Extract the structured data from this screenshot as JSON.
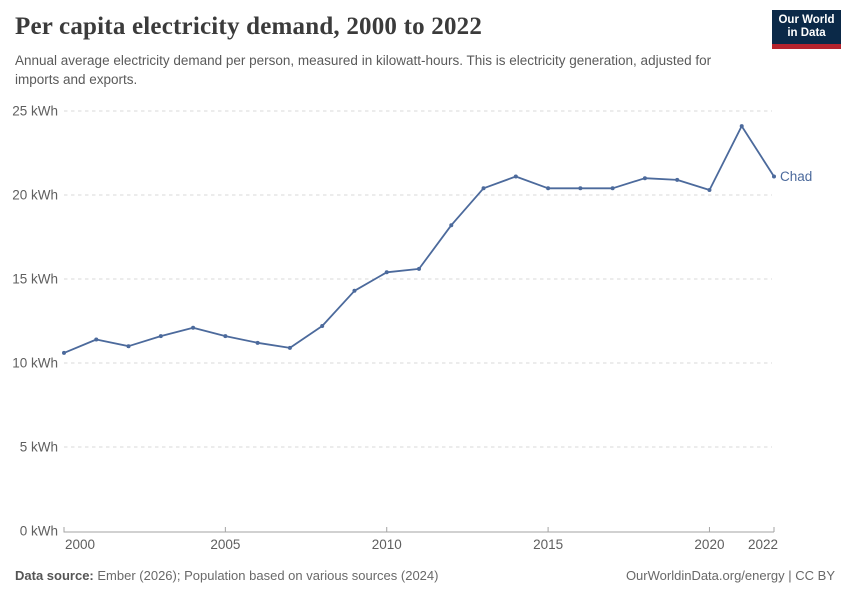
{
  "header": {
    "title": "Per capita electricity demand, 2000 to 2022",
    "subtitle": "Annual average electricity demand per person, measured in kilowatt-hours. This is electricity generation, adjusted for imports and exports.",
    "logo": {
      "line1": "Our World",
      "line2": "in Data",
      "bg_color": "#0b2948",
      "accent_color": "#b5232d",
      "text_color": "#ffffff"
    }
  },
  "chart_data": {
    "type": "line",
    "title": "Per capita electricity demand, 2000 to 2022",
    "x": [
      2000,
      2001,
      2002,
      2003,
      2004,
      2005,
      2006,
      2007,
      2008,
      2009,
      2010,
      2011,
      2012,
      2013,
      2014,
      2015,
      2016,
      2017,
      2018,
      2019,
      2020,
      2021,
      2022
    ],
    "series": [
      {
        "name": "Chad",
        "color": "#4C6A9C",
        "values": [
          10.6,
          11.4,
          11.0,
          11.6,
          12.1,
          11.6,
          11.2,
          10.9,
          12.2,
          14.3,
          15.4,
          15.6,
          18.2,
          20.4,
          21.1,
          20.4,
          20.4,
          20.4,
          21.0,
          20.9,
          20.3,
          24.1,
          21.1
        ]
      }
    ],
    "xlabel": "",
    "ylabel": "",
    "y_tick_suffix": " kWh",
    "x_ticks": [
      2000,
      2005,
      2010,
      2015,
      2020,
      2022
    ],
    "y_ticks": [
      0,
      5,
      10,
      15,
      20,
      25
    ],
    "xlim": [
      2000,
      2022
    ],
    "ylim": [
      0,
      25
    ],
    "grid": "horizontal-dashed",
    "legend_position": "line-end-label"
  },
  "footer": {
    "data_source_label": "Data source:",
    "data_source_text": "Ember (2026); Population based on various sources (2024)",
    "attribution": "OurWorldinData.org/energy | CC BY"
  },
  "colors": {
    "line": "#4C6A9C",
    "grid": "#d9d9d9",
    "axis": "#a3a3a3",
    "tick_text": "#5f5f5f"
  }
}
